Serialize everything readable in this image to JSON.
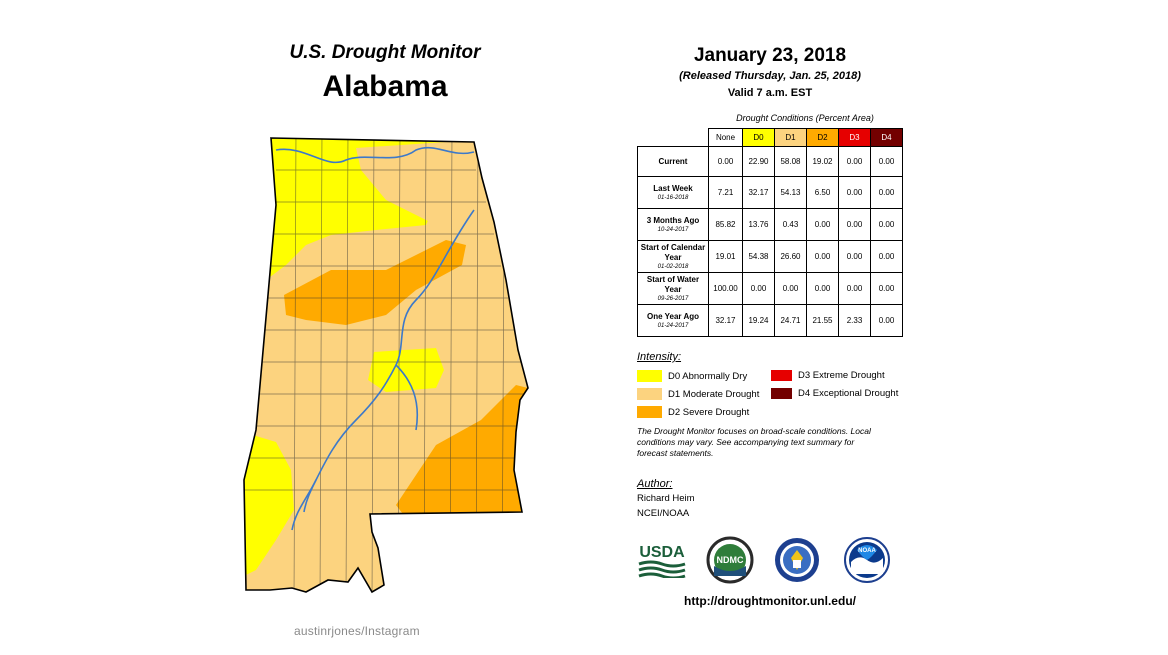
{
  "header": {
    "title": "U.S. Drought Monitor",
    "state": "Alabama"
  },
  "map": {
    "categories": [
      "D0",
      "D1",
      "D2"
    ],
    "colors": {
      "D0": "#ffff00",
      "D1": "#fcd37f",
      "D2": "#ffaa00",
      "D3": "#e60000",
      "D4": "#730000",
      "rivers": "#3d79c9"
    }
  },
  "watermark": "austinrjones/Instagram",
  "info": {
    "date": "January 23, 2018",
    "released": "(Released Thursday, Jan. 25, 2018)",
    "valid": "Valid 7 a.m. EST"
  },
  "table": {
    "caption": "Drought Conditions (Percent Area)",
    "columns": [
      "None",
      "D0",
      "D1",
      "D2",
      "D3",
      "D4"
    ],
    "column_colors": [
      "#ffffff",
      "#ffff00",
      "#fcd37f",
      "#ffaa00",
      "#e60000",
      "#730000"
    ],
    "rows": [
      {
        "label": "Current",
        "date": "",
        "values": [
          "0.00",
          "22.90",
          "58.08",
          "19.02",
          "0.00",
          "0.00"
        ]
      },
      {
        "label": "Last Week",
        "date": "01-16-2018",
        "values": [
          "7.21",
          "32.17",
          "54.13",
          "6.50",
          "0.00",
          "0.00"
        ]
      },
      {
        "label": "3 Months Ago",
        "date": "10-24-2017",
        "values": [
          "85.82",
          "13.76",
          "0.43",
          "0.00",
          "0.00",
          "0.00"
        ]
      },
      {
        "label": "Start of Calendar Year",
        "date": "01-02-2018",
        "values": [
          "19.01",
          "54.38",
          "26.60",
          "0.00",
          "0.00",
          "0.00"
        ]
      },
      {
        "label": "Start of Water Year",
        "date": "09-26-2017",
        "values": [
          "100.00",
          "0.00",
          "0.00",
          "0.00",
          "0.00",
          "0.00"
        ]
      },
      {
        "label": "One Year Ago",
        "date": "01-24-2017",
        "values": [
          "32.17",
          "19.24",
          "24.71",
          "21.55",
          "2.33",
          "0.00"
        ]
      }
    ]
  },
  "legend": {
    "heading": "Intensity:",
    "items": [
      {
        "code": "D0",
        "label": "D0 Abnormally Dry",
        "color": "#ffff00"
      },
      {
        "code": "D1",
        "label": "D1 Moderate Drought",
        "color": "#fcd37f"
      },
      {
        "code": "D2",
        "label": "D2 Severe Drought",
        "color": "#ffaa00"
      },
      {
        "code": "D3",
        "label": "D3 Extreme Drought",
        "color": "#e60000"
      },
      {
        "code": "D4",
        "label": "D4 Exceptional Drought",
        "color": "#730000"
      }
    ]
  },
  "note": "The Drought Monitor focuses on broad-scale conditions. Local conditions may vary. See accompanying text summary for forecast statements.",
  "author": {
    "heading": "Author:",
    "name": "Richard Heim",
    "org": "NCEI/NOAA"
  },
  "logos": {
    "usda": "USDA",
    "ndmc": "NDMC",
    "noaa": "NOAA",
    "usda_icon": "usda-logo-icon",
    "ndmc_icon": "ndmc-logo-icon",
    "doc_icon": "commerce-seal-icon",
    "noaa_icon": "noaa-logo-icon"
  },
  "url": "http://droughtmonitor.unl.edu/"
}
